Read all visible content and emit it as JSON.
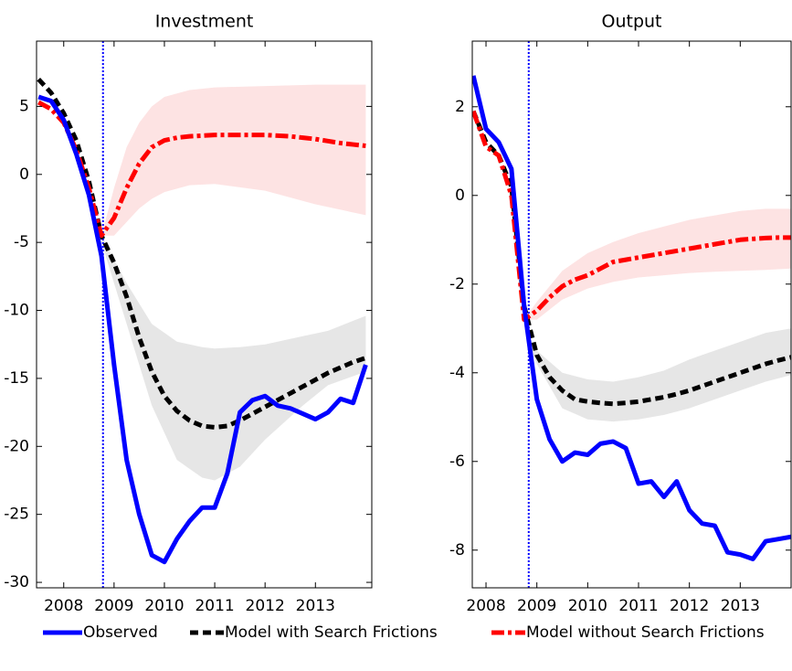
{
  "chart_data": [
    {
      "type": "line",
      "title": "Investment",
      "xlim": [
        2007.46,
        2014.12
      ],
      "xticks": [
        2008,
        2009,
        2010,
        2011,
        2012,
        2013
      ],
      "ylim": [
        -30.4,
        9.8
      ],
      "yticks": [
        5,
        0,
        -5,
        -10,
        -15,
        -20,
        -25,
        -30
      ],
      "vline": 2008.78,
      "vline_color": "#0000ff",
      "x": [
        2007.5,
        2007.75,
        2008,
        2008.25,
        2008.5,
        2008.75,
        2009,
        2009.25,
        2009.5,
        2009.75,
        2010,
        2010.25,
        2010.5,
        2010.75,
        2011,
        2011.25,
        2011.5,
        2011.75,
        2012,
        2012.25,
        2012.5,
        2012.75,
        2013,
        2013.25,
        2013.5,
        2013.75,
        2014
      ],
      "series": [
        {
          "name": "Observed",
          "color": "#0000ff",
          "values": [
            5.7,
            5.4,
            4.0,
            1.5,
            -1.5,
            -6,
            -14,
            -21,
            -25,
            -28,
            -28.5,
            -26.8,
            -25.5,
            -24.5,
            -24.5,
            -22,
            -17.5,
            -16.6,
            -16.3,
            -17,
            -17.2,
            -17.6,
            -18,
            -17.5,
            -16.5,
            -16.8,
            -14
          ]
        },
        {
          "name": "Model with Search Frictions",
          "color": "#000000",
          "values": [
            7.0,
            6.0,
            4.5,
            2.5,
            -0.5,
            -4.5,
            -6.5,
            -9,
            -12,
            -14.5,
            -16.3,
            -17.4,
            -18.1,
            -18.5,
            -18.6,
            -18.5,
            -18.1,
            -17.6,
            -17.1,
            -16.6,
            -16.1,
            -15.6,
            -15.1,
            -14.6,
            -14.2,
            -13.8,
            -13.5
          ]
        },
        {
          "name": "Model without Search Frictions",
          "color": "#ff0000",
          "values": [
            5.3,
            4.8,
            3.8,
            1.8,
            -1.0,
            -4.5,
            -3.2,
            -1,
            0.8,
            2.0,
            2.5,
            2.7,
            2.8,
            2.85,
            2.9,
            2.9,
            2.9,
            2.9,
            2.9,
            2.85,
            2.8,
            2.7,
            2.6,
            2.45,
            2.3,
            2.2,
            2.1
          ]
        }
      ],
      "bands": [
        {
          "color": "#e6e6e6",
          "x": [
            2008.75,
            2009.25,
            2009.75,
            2010.25,
            2010.75,
            2011,
            2011.5,
            2012,
            2012.75,
            2013.25,
            2014
          ],
          "lower": [
            -5,
            -11,
            -17,
            -21,
            -22.3,
            -22.5,
            -21.5,
            -19.5,
            -17,
            -15.5,
            -14.5
          ],
          "upper": [
            -4.5,
            -8,
            -11,
            -12.3,
            -12.7,
            -12.8,
            -12.7,
            -12.5,
            -11.9,
            -11.5,
            -10.4
          ]
        },
        {
          "color": "#fde3e3",
          "x": [
            2008.75,
            2009,
            2009.25,
            2009.5,
            2009.75,
            2010,
            2010.5,
            2011,
            2012,
            2013,
            2014
          ],
          "lower": [
            -4.5,
            -4.5,
            -3.5,
            -2.5,
            -1.8,
            -1.3,
            -0.8,
            -0.7,
            -1.2,
            -2.2,
            -3.0
          ],
          "upper": [
            -4.5,
            -1,
            2,
            3.8,
            5,
            5.7,
            6.2,
            6.4,
            6.5,
            6.6,
            6.6
          ]
        }
      ]
    },
    {
      "type": "line",
      "title": "Output",
      "xlim": [
        2007.73,
        2014.0
      ],
      "xticks": [
        2008,
        2009,
        2010,
        2011,
        2012,
        2013
      ],
      "ylim": [
        -8.85,
        3.48
      ],
      "yticks": [
        2,
        0,
        -2,
        -4,
        -6,
        -8
      ],
      "vline": 2008.84,
      "vline_color": "#0000ff",
      "x": [
        2007.75,
        2008,
        2008.25,
        2008.5,
        2008.75,
        2009,
        2009.25,
        2009.5,
        2009.75,
        2010,
        2010.25,
        2010.5,
        2010.75,
        2011,
        2011.25,
        2011.5,
        2011.75,
        2012,
        2012.25,
        2012.5,
        2012.75,
        2013,
        2013.25,
        2013.5,
        2013.75,
        2014
      ],
      "series": [
        {
          "color": "#0000ff",
          "values": [
            2.7,
            1.5,
            1.2,
            0.6,
            -2.5,
            -4.6,
            -5.5,
            -6.0,
            -5.8,
            -5.85,
            -5.6,
            -5.55,
            -5.7,
            -6.5,
            -6.45,
            -6.8,
            -6.45,
            -7.1,
            -7.4,
            -7.45,
            -8.05,
            -8.1,
            -8.2,
            -7.8,
            -7.75,
            -7.7
          ]
        },
        {
          "color": "#000000",
          "values": [
            1.9,
            1.2,
            0.9,
            0.2,
            -2.5,
            -3.6,
            -4.1,
            -4.4,
            -4.6,
            -4.65,
            -4.68,
            -4.7,
            -4.68,
            -4.65,
            -4.6,
            -4.55,
            -4.48,
            -4.4,
            -4.3,
            -4.2,
            -4.1,
            -4.0,
            -3.9,
            -3.8,
            -3.72,
            -3.65
          ]
        },
        {
          "color": "#ff0000",
          "values": [
            1.9,
            1.1,
            0.9,
            0.0,
            -2.8,
            -2.6,
            -2.3,
            -2.05,
            -1.9,
            -1.8,
            -1.65,
            -1.5,
            -1.45,
            -1.4,
            -1.35,
            -1.3,
            -1.25,
            -1.2,
            -1.15,
            -1.1,
            -1.05,
            -1.0,
            -0.98,
            -0.96,
            -0.95,
            -0.95
          ]
        }
      ],
      "bands": [
        {
          "color": "#e6e6e6",
          "x": [
            2008.75,
            2009,
            2009.5,
            2010,
            2010.5,
            2011,
            2011.5,
            2012,
            2012.5,
            2013,
            2013.5,
            2014
          ],
          "lower": [
            -3,
            -3.8,
            -4.8,
            -5.05,
            -5.1,
            -5.05,
            -4.95,
            -4.8,
            -4.6,
            -4.4,
            -4.2,
            -4.05
          ],
          "upper": [
            -3,
            -3.5,
            -4.0,
            -4.15,
            -4.2,
            -4.1,
            -3.95,
            -3.7,
            -3.5,
            -3.3,
            -3.1,
            -3.0
          ]
        },
        {
          "color": "#fde3e3",
          "x": [
            2008.75,
            2009,
            2009.5,
            2010,
            2010.5,
            2011,
            2011.5,
            2012,
            2012.5,
            2013,
            2013.5,
            2014
          ],
          "lower": [
            -2.8,
            -2.8,
            -2.35,
            -2.1,
            -1.95,
            -1.85,
            -1.8,
            -1.75,
            -1.72,
            -1.7,
            -1.68,
            -1.65
          ],
          "upper": [
            -2.8,
            -2.4,
            -1.7,
            -1.3,
            -1.05,
            -0.85,
            -0.7,
            -0.55,
            -0.45,
            -0.35,
            -0.3,
            -0.3
          ]
        }
      ]
    }
  ]
}
